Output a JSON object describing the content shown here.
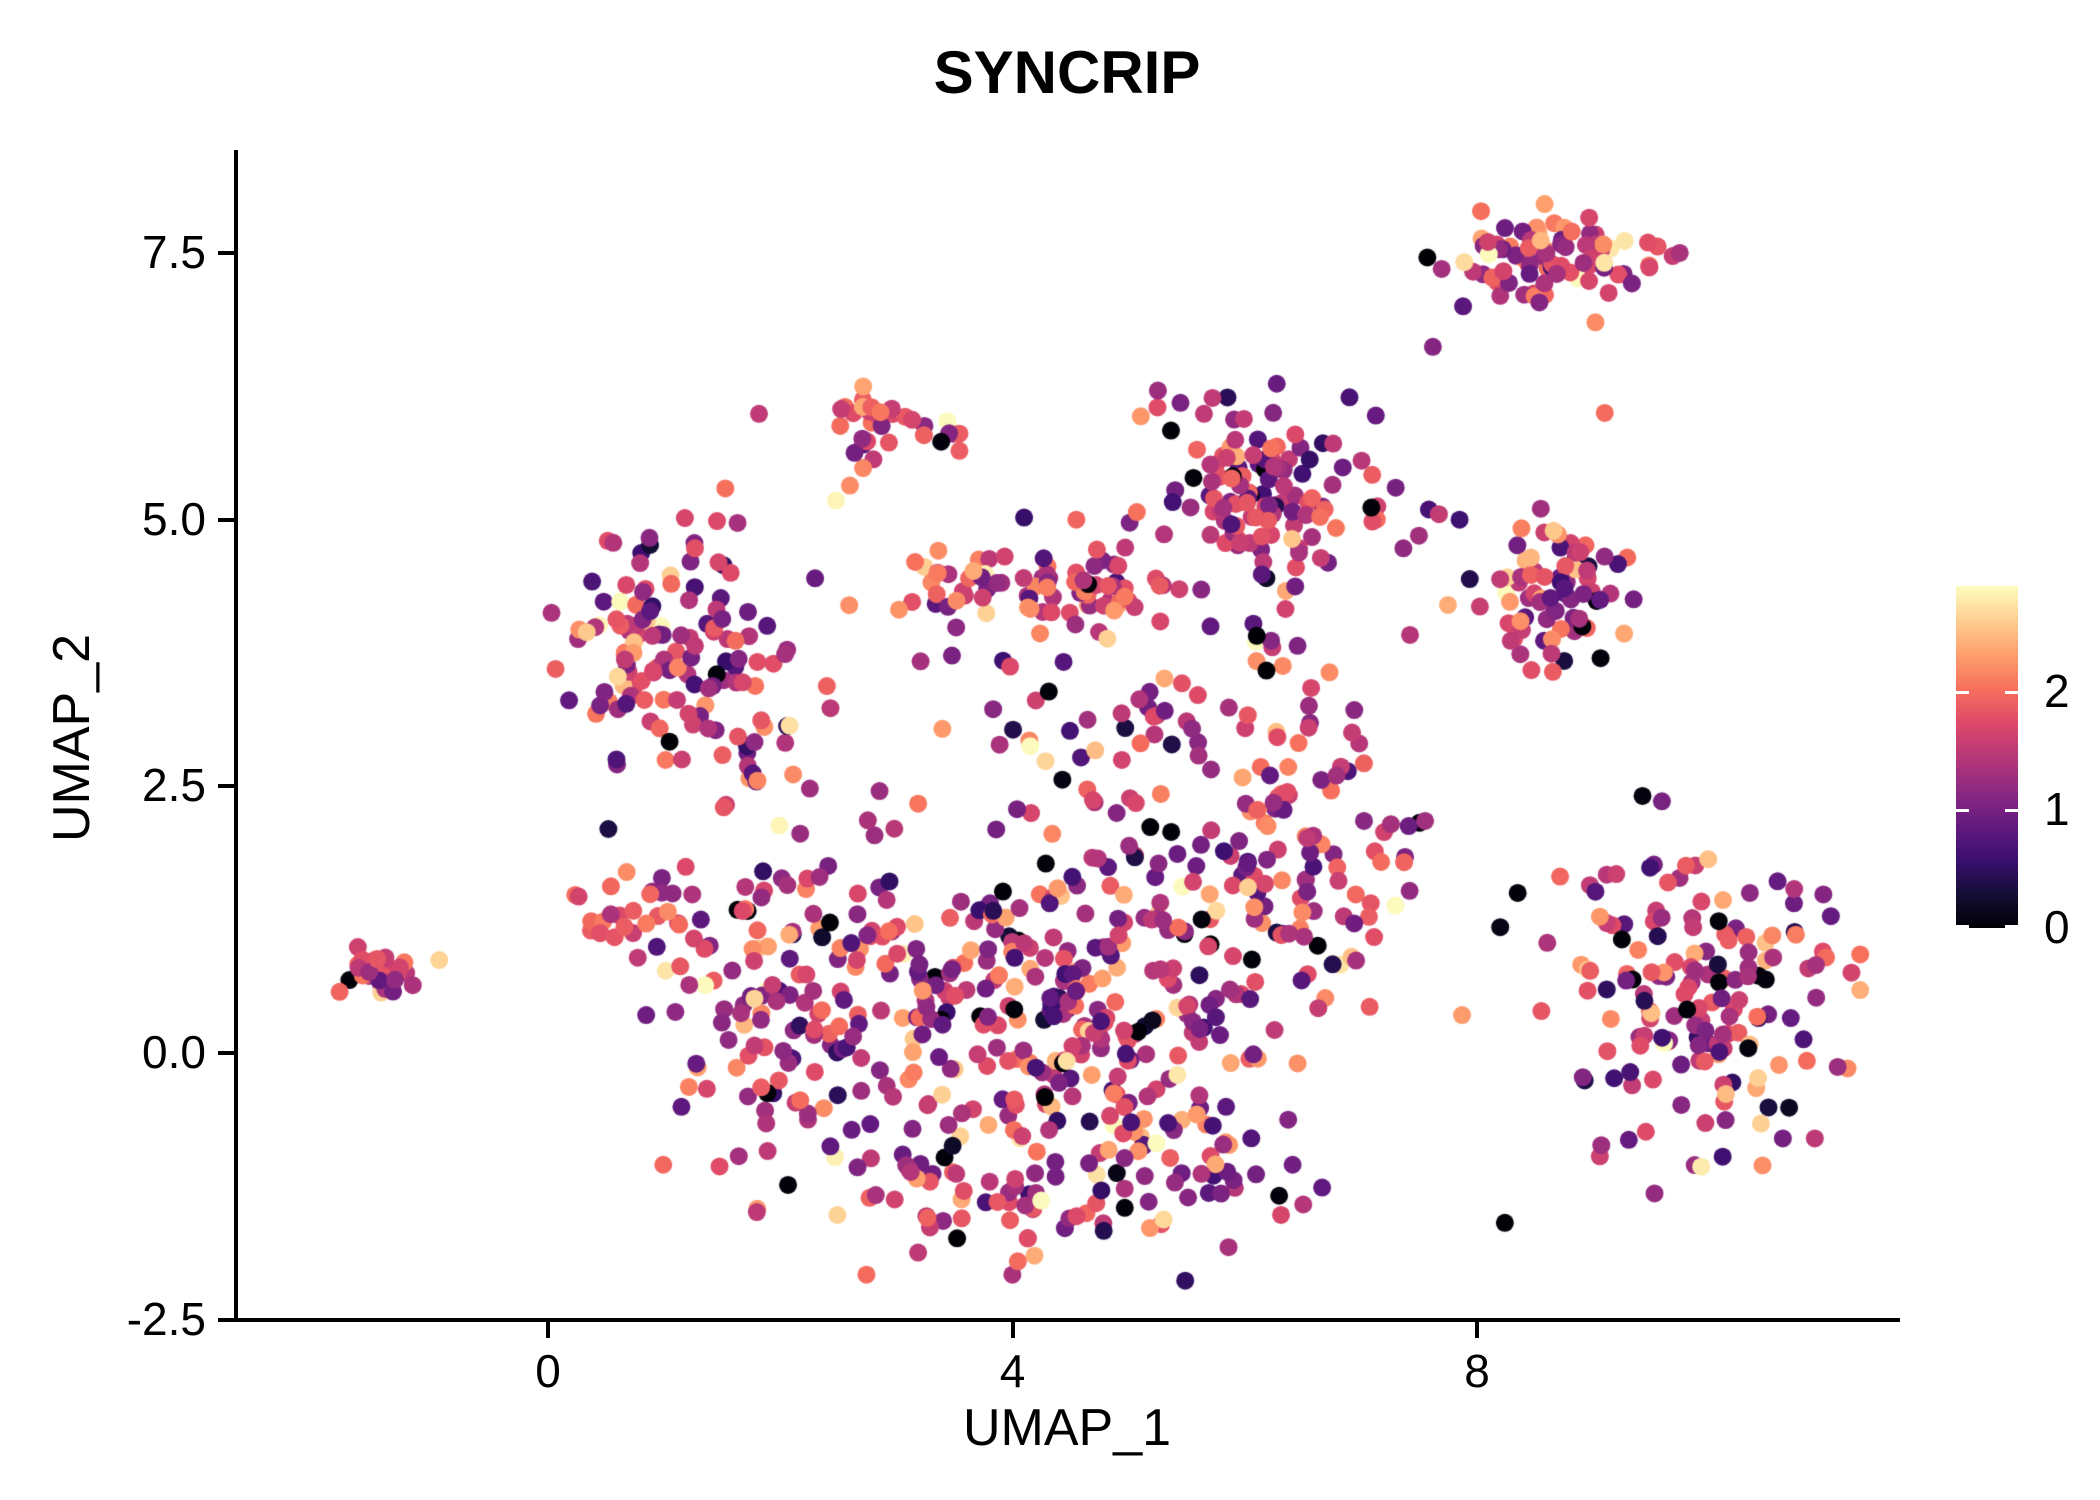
{
  "title": "SYNCRIP",
  "chart_data": {
    "type": "scatter",
    "title": "SYNCRIP",
    "xlabel": "UMAP_1",
    "ylabel": "UMAP_2",
    "xlim": [
      -2.7,
      11.4
    ],
    "ylim": [
      -2.6,
      8.5
    ],
    "grid": false,
    "legend_position": "right",
    "point_radius_px": 9,
    "seed": 42,
    "x_ticks": [
      {
        "v": 0,
        "label": "0"
      },
      {
        "v": 4,
        "label": "4"
      },
      {
        "v": 8,
        "label": "8"
      }
    ],
    "y_ticks": [
      {
        "v": -2.5,
        "label": "-2.5"
      },
      {
        "v": 0.0,
        "label": "0.0"
      },
      {
        "v": 2.5,
        "label": "2.5"
      },
      {
        "v": 5.0,
        "label": "5.0"
      },
      {
        "v": 7.5,
        "label": "7.5"
      }
    ],
    "colorbar": {
      "vmin": 0,
      "vmax": 2.9,
      "colormap": "magma",
      "ticks": [
        {
          "v": 0,
          "label": "0"
        },
        {
          "v": 1,
          "label": "1"
        },
        {
          "v": 2,
          "label": "2"
        }
      ],
      "stops": [
        "#000004",
        "#140e36",
        "#3b0f70",
        "#641a80",
        "#8c2981",
        "#b73779",
        "#de4968",
        "#f7705c",
        "#fe9f6d",
        "#fece91",
        "#fcfdbf"
      ]
    },
    "clusters": [
      {
        "name": "far-left-island",
        "n": 26,
        "cx": -1.35,
        "cy": 0.75,
        "sx": 0.2,
        "sy": 0.1,
        "vmean": 1.6,
        "vsd": 0.5,
        "zero_frac": 0.02
      },
      {
        "name": "upper-left",
        "n": 115,
        "cx": 1.05,
        "cy": 3.85,
        "sx": 0.42,
        "sy": 0.5,
        "vmean": 1.55,
        "vsd": 0.6,
        "zero_frac": 0.02
      },
      {
        "name": "left-bridge",
        "n": 25,
        "cx": 1.75,
        "cy": 2.8,
        "sx": 0.35,
        "sy": 0.4,
        "vmean": 1.5,
        "vsd": 0.55,
        "zero_frac": 0.02
      },
      {
        "name": "top-small",
        "n": 32,
        "cx": 2.95,
        "cy": 5.85,
        "sx": 0.27,
        "sy": 0.18,
        "vmean": 1.7,
        "vsd": 0.55,
        "zero_frac": 0.03
      },
      {
        "name": "mid-band",
        "n": 38,
        "cx": 3.55,
        "cy": 4.35,
        "sx": 0.42,
        "sy": 0.17,
        "vmean": 1.6,
        "vsd": 0.55,
        "zero_frac": 0.02
      },
      {
        "name": "upper-mid-clump",
        "n": 45,
        "cx": 4.75,
        "cy": 4.35,
        "sx": 0.28,
        "sy": 0.18,
        "vmean": 1.75,
        "vsd": 0.5,
        "zero_frac": 0.02
      },
      {
        "name": "top-center",
        "n": 125,
        "cx": 6.15,
        "cy": 5.3,
        "sx": 0.5,
        "sy": 0.42,
        "vmean": 1.4,
        "vsd": 0.62,
        "zero_frac": 0.02
      },
      {
        "name": "right-mid",
        "n": 75,
        "cx": 8.75,
        "cy": 4.35,
        "sx": 0.37,
        "sy": 0.37,
        "vmean": 1.5,
        "vsd": 0.6,
        "zero_frac": 0.02
      },
      {
        "name": "top-right",
        "n": 85,
        "cx": 8.65,
        "cy": 7.5,
        "sx": 0.45,
        "sy": 0.2,
        "vmean": 1.7,
        "vsd": 0.6,
        "zero_frac": 0.02
      },
      {
        "name": "center-west",
        "n": 120,
        "cx": 2.0,
        "cy": 0.5,
        "sx": 0.55,
        "sy": 0.85,
        "vmean": 1.5,
        "vsd": 0.6,
        "zero_frac": 0.02
      },
      {
        "name": "center-mid",
        "n": 150,
        "cx": 3.6,
        "cy": 0.2,
        "sx": 0.75,
        "sy": 0.8,
        "vmean": 1.45,
        "vsd": 0.6,
        "zero_frac": 0.02
      },
      {
        "name": "center-east",
        "n": 190,
        "cx": 5.2,
        "cy": 0.5,
        "sx": 0.75,
        "sy": 0.85,
        "vmean": 1.45,
        "vsd": 0.6,
        "zero_frac": 0.03
      },
      {
        "name": "center-ne-ridge",
        "n": 75,
        "cx": 6.5,
        "cy": 1.7,
        "sx": 0.45,
        "sy": 0.6,
        "vmean": 1.5,
        "vsd": 0.6,
        "zero_frac": 0.02
      },
      {
        "name": "center-south-arc",
        "n": 85,
        "cx": 4.4,
        "cy": -1.35,
        "sx": 1.0,
        "sy": 0.35,
        "vmean": 1.5,
        "vsd": 0.6,
        "zero_frac": 0.02
      },
      {
        "name": "center-west-spur",
        "n": 28,
        "cx": 0.75,
        "cy": 1.3,
        "sx": 0.27,
        "sy": 0.2,
        "vmean": 1.6,
        "vsd": 0.5,
        "zero_frac": 0.03
      },
      {
        "name": "center-north-sparse",
        "n": 35,
        "cx": 5.5,
        "cy": 2.7,
        "sx": 0.85,
        "sy": 0.5,
        "vmean": 1.45,
        "vsd": 0.6,
        "zero_frac": 0.02
      },
      {
        "name": "center-top-sparse",
        "n": 30,
        "cx": 4.3,
        "cy": 3.3,
        "sx": 0.9,
        "sy": 0.45,
        "vmean": 1.5,
        "vsd": 0.6,
        "zero_frac": 0.02
      },
      {
        "name": "chain-ne",
        "n": 22,
        "cx": 6.3,
        "cy": 3.6,
        "sx": 0.33,
        "sy": 0.55,
        "vmean": 1.5,
        "vsd": 0.6,
        "zero_frac": 0.02
      },
      {
        "name": "right-lower",
        "n": 165,
        "cx": 9.85,
        "cy": 0.55,
        "sx": 0.62,
        "sy": 0.78,
        "vmean": 1.5,
        "vsd": 0.6,
        "zero_frac": 0.05
      }
    ],
    "extra_points": [
      {
        "x": 2.48,
        "y": 5.18,
        "v": 2.85
      },
      {
        "x": 2.6,
        "y": 5.32,
        "v": 2.2
      },
      {
        "x": 4.1,
        "y": 5.02,
        "v": 0.55
      },
      {
        "x": 4.55,
        "y": 5.0,
        "v": 1.95
      },
      {
        "x": 0.38,
        "y": 4.42,
        "v": 0.7
      },
      {
        "x": 2.3,
        "y": 4.45,
        "v": 0.9
      },
      {
        "x": 7.62,
        "y": 6.62,
        "v": 1.1
      },
      {
        "x": 9.02,
        "y": 6.85,
        "v": 2.2
      },
      {
        "x": 9.1,
        "y": 6.0,
        "v": 2.0
      },
      {
        "x": 7.88,
        "y": 7.0,
        "v": 0.8
      },
      {
        "x": 8.2,
        "y": 1.18,
        "v": 0.1
      },
      {
        "x": 7.42,
        "y": 1.52,
        "v": 1.2
      },
      {
        "x": 7.5,
        "y": 4.85,
        "v": 1.3
      },
      {
        "x": 7.75,
        "y": 4.2,
        "v": 2.4
      },
      {
        "x": 7.3,
        "y": 5.3,
        "v": 1.0
      },
      {
        "x": 7.85,
        "y": 5.0,
        "v": 0.6
      },
      {
        "x": 6.55,
        "y": 3.05,
        "v": 1.6
      },
      {
        "x": 0.52,
        "y": 2.1,
        "v": 0.35
      }
    ]
  }
}
